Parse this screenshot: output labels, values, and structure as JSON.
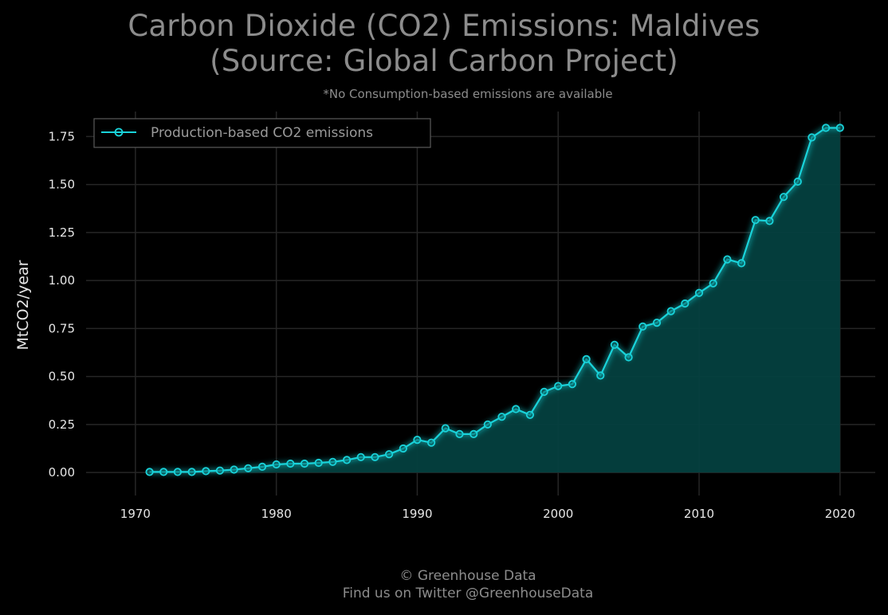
{
  "title_line1": "Carbon Dioxide (CO2) Emissions: Maldives",
  "title_line2": "(Source: Global Carbon Project)",
  "subtitle": "*No Consumption-based emissions are available",
  "footer_line1": "© Greenhouse Data",
  "footer_line2": "Find us on Twitter @GreenhouseData",
  "colors": {
    "background": "#000000",
    "line": "#19d3da",
    "fill": "#04403f",
    "grid": "#262626",
    "text": "#8c8c8c"
  },
  "chart_data": {
    "type": "area",
    "title": "Carbon Dioxide (CO2) Emissions: Maldives (Source: Global Carbon Project)",
    "ylabel": "MtCO2/year",
    "xlabel": "",
    "xlim": [
      1966.5,
      2022.5
    ],
    "ylim": [
      -0.12,
      1.88
    ],
    "xticks": [
      1970,
      1980,
      1990,
      2000,
      2010,
      2020
    ],
    "yticks": [
      0.0,
      0.25,
      0.5,
      0.75,
      1.0,
      1.25,
      1.5,
      1.75
    ],
    "ytick_labels": [
      "0.00",
      "0.25",
      "0.50",
      "0.75",
      "1.00",
      "1.25",
      "1.50",
      "1.75"
    ],
    "grid": true,
    "legend_position": "top-left",
    "series": [
      {
        "name": "Production-based CO2 emissions",
        "x": [
          1971,
          1972,
          1973,
          1974,
          1975,
          1976,
          1977,
          1978,
          1979,
          1980,
          1981,
          1982,
          1983,
          1984,
          1985,
          1986,
          1987,
          1988,
          1989,
          1990,
          1991,
          1992,
          1993,
          1994,
          1995,
          1996,
          1997,
          1998,
          1999,
          2000,
          2001,
          2002,
          2003,
          2004,
          2005,
          2006,
          2007,
          2008,
          2009,
          2010,
          2011,
          2012,
          2013,
          2014,
          2015,
          2016,
          2017,
          2018,
          2019,
          2020
        ],
        "y": [
          0.003,
          0.003,
          0.003,
          0.003,
          0.007,
          0.01,
          0.015,
          0.022,
          0.03,
          0.042,
          0.046,
          0.046,
          0.05,
          0.055,
          0.065,
          0.08,
          0.08,
          0.095,
          0.125,
          0.17,
          0.155,
          0.23,
          0.2,
          0.2,
          0.25,
          0.29,
          0.33,
          0.3,
          0.42,
          0.45,
          0.46,
          0.59,
          0.505,
          0.665,
          0.6,
          0.76,
          0.78,
          0.84,
          0.88,
          0.935,
          0.985,
          1.11,
          1.09,
          1.315,
          1.31,
          1.435,
          1.515,
          1.745,
          1.795,
          1.795
        ]
      }
    ]
  }
}
